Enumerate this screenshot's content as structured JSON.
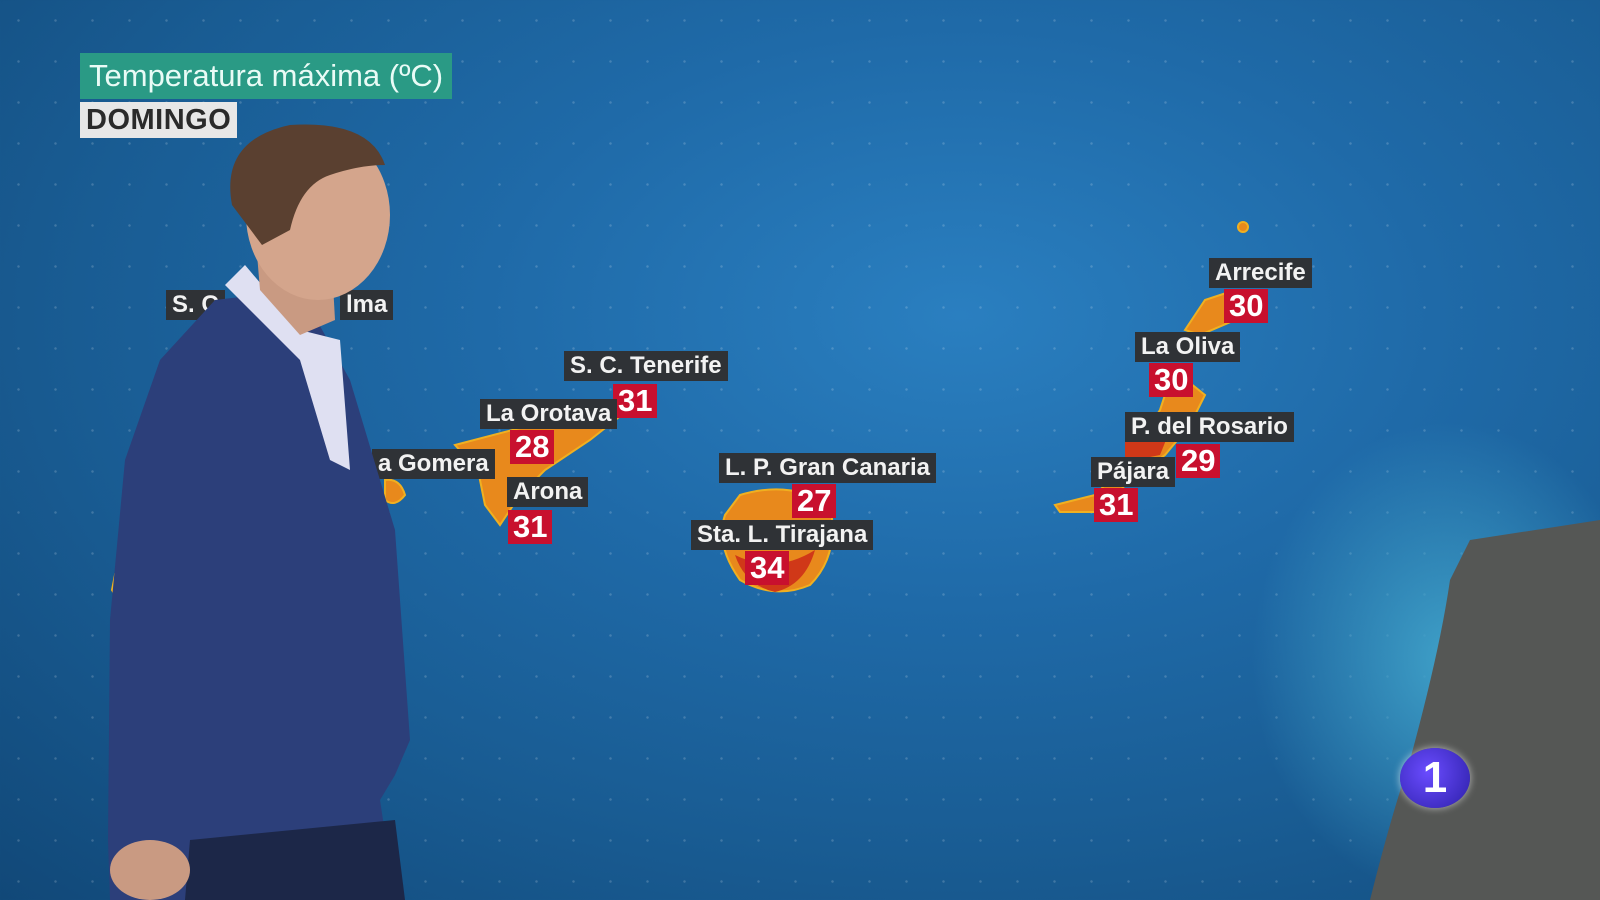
{
  "header": {
    "title": "Temperatura máxima (ºC)",
    "day": "DOMINGO"
  },
  "locations": [
    {
      "name": "S. C",
      "name_tail": "lma",
      "temp": null
    },
    {
      "name": "S. C. Tenerife",
      "temp": "31"
    },
    {
      "name": "La Orotava",
      "temp": "28"
    },
    {
      "name": "a Gomera",
      "temp": null
    },
    {
      "name": "Arona",
      "temp": "31"
    },
    {
      "name": "L. P. Gran Canaria",
      "temp": "27"
    },
    {
      "name": "Sta. L. Tirajana",
      "temp": "34"
    },
    {
      "name": "Arrecife",
      "temp": "30"
    },
    {
      "name": "La Oliva",
      "temp": "30"
    },
    {
      "name": "P. del Rosario",
      "temp": "29"
    },
    {
      "name": "Pájara",
      "temp": "31"
    }
  ],
  "channel_logo": "1",
  "colors": {
    "title_bg": "#2a9a85",
    "temp_bg": "#c8102e",
    "label_bg": "#2f3236",
    "ocean": "#1f6aa8",
    "land_hot": "#e8891c"
  }
}
